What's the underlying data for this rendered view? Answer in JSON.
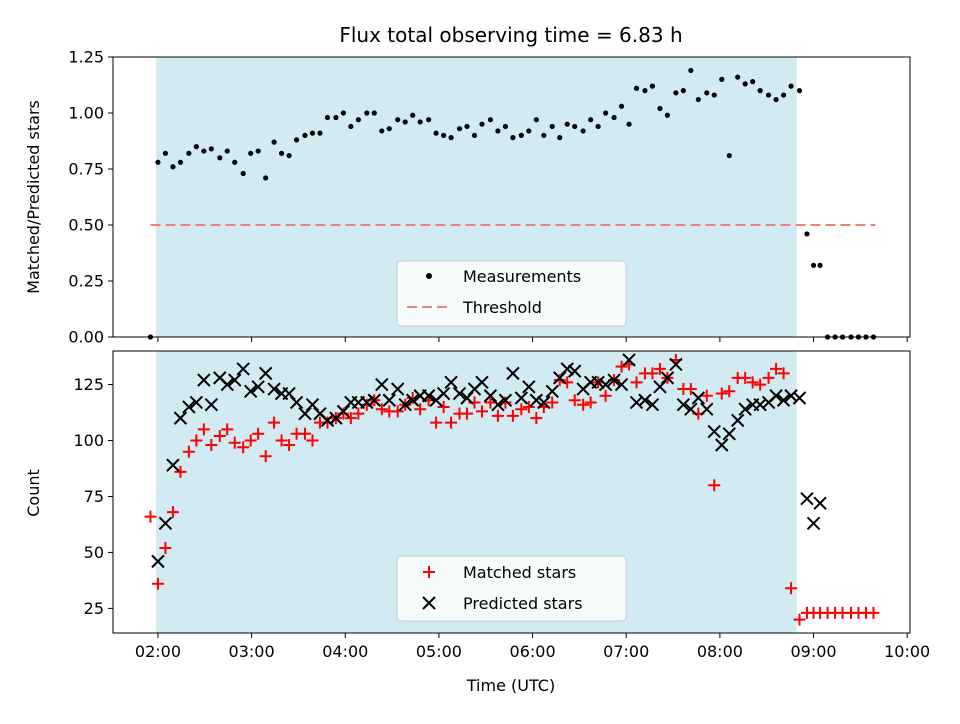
{
  "title": "Flux total observing time = 6.83 h",
  "chart_data": [
    {
      "type": "scatter",
      "ylabel": "Matched/Predicted stars",
      "xlim": [
        1.52,
        10.03
      ],
      "ylim": [
        0,
        1.25
      ],
      "yticks": [
        0.0,
        0.25,
        0.5,
        0.75,
        1.0,
        1.25
      ],
      "ytick_labels": [
        "0.00",
        "0.25",
        "0.50",
        "0.75",
        "1.00",
        "1.25"
      ],
      "shaded_span_hours": [
        1.98,
        8.82
      ],
      "shade_color": "#add8e6",
      "threshold": {
        "label": "Threshold",
        "y": 0.5,
        "x_from": 1.92,
        "x_to": 9.66,
        "color": "#f08080",
        "style": "dashed"
      },
      "legend": {
        "position": "lower center",
        "entries": [
          "Measurements",
          "Threshold"
        ]
      },
      "series": [
        {
          "name": "Measurements",
          "marker": "dot",
          "color": "#000000",
          "x": [
            1.92,
            2.0,
            2.08,
            2.16,
            2.24,
            2.33,
            2.41,
            2.49,
            2.57,
            2.66,
            2.74,
            2.82,
            2.91,
            2.99,
            3.07,
            3.15,
            3.24,
            3.32,
            3.4,
            3.48,
            3.57,
            3.65,
            3.73,
            3.81,
            3.9,
            3.98,
            4.06,
            4.14,
            4.23,
            4.31,
            4.39,
            4.47,
            4.56,
            4.64,
            4.72,
            4.8,
            4.89,
            4.97,
            5.05,
            5.13,
            5.22,
            5.3,
            5.38,
            5.46,
            5.55,
            5.63,
            5.71,
            5.79,
            5.88,
            5.96,
            6.04,
            6.12,
            6.21,
            6.29,
            6.37,
            6.45,
            6.54,
            6.62,
            6.7,
            6.78,
            6.87,
            6.95,
            7.03,
            7.11,
            7.2,
            7.28,
            7.36,
            7.44,
            7.53,
            7.61,
            7.69,
            7.77,
            7.86,
            7.94,
            8.02,
            8.1,
            8.19,
            8.27,
            8.35,
            8.43,
            8.52,
            8.6,
            8.68,
            8.76,
            8.85,
            8.93,
            9.0,
            9.07,
            9.15,
            9.23,
            9.31,
            9.4,
            9.48,
            9.56,
            9.64
          ],
          "y": [
            0.0,
            0.78,
            0.82,
            0.76,
            0.78,
            0.82,
            0.85,
            0.83,
            0.84,
            0.8,
            0.83,
            0.78,
            0.73,
            0.82,
            0.83,
            0.71,
            0.87,
            0.82,
            0.81,
            0.88,
            0.9,
            0.91,
            0.91,
            0.98,
            0.98,
            1.0,
            0.94,
            0.97,
            1.0,
            1.0,
            0.92,
            0.93,
            0.97,
            0.96,
            0.99,
            0.96,
            0.97,
            0.91,
            0.9,
            0.89,
            0.93,
            0.94,
            0.9,
            0.95,
            0.97,
            0.92,
            0.94,
            0.89,
            0.9,
            0.92,
            0.97,
            0.9,
            0.94,
            0.89,
            0.95,
            0.94,
            0.92,
            0.97,
            0.94,
            1.0,
            0.98,
            1.03,
            0.95,
            1.11,
            1.1,
            1.12,
            1.02,
            0.99,
            1.09,
            1.1,
            1.19,
            1.06,
            1.09,
            1.08,
            1.15,
            0.81,
            1.16,
            1.13,
            1.14,
            1.1,
            1.08,
            1.06,
            1.08,
            1.12,
            1.1,
            0.46,
            0.32,
            0.32,
            0.0,
            0.0,
            0.0,
            0.0,
            0.0,
            0.0,
            0.0
          ]
        }
      ]
    },
    {
      "type": "scatter",
      "xlabel": "Time (UTC)",
      "ylabel": "Count",
      "xlim": [
        1.52,
        10.03
      ],
      "ylim": [
        14,
        140
      ],
      "xticks": [
        2,
        3,
        4,
        5,
        6,
        7,
        8,
        9,
        10
      ],
      "xtick_labels": [
        "02:00",
        "03:00",
        "04:00",
        "05:00",
        "06:00",
        "07:00",
        "08:00",
        "09:00",
        "10:00"
      ],
      "yticks": [
        25,
        50,
        75,
        100,
        125
      ],
      "ytick_labels": [
        "25",
        "50",
        "75",
        "100",
        "125"
      ],
      "shaded_span_hours": [
        1.98,
        8.82
      ],
      "shade_color": "#add8e6",
      "legend": {
        "position": "lower center",
        "entries": [
          "Matched stars",
          "Predicted stars"
        ]
      },
      "series": [
        {
          "name": "Matched stars",
          "marker": "plus",
          "color": "#ff0000",
          "x": [
            1.92,
            2.0,
            2.08,
            2.16,
            2.24,
            2.33,
            2.41,
            2.49,
            2.57,
            2.66,
            2.74,
            2.82,
            2.91,
            2.99,
            3.07,
            3.15,
            3.24,
            3.32,
            3.4,
            3.48,
            3.57,
            3.65,
            3.73,
            3.81,
            3.9,
            3.98,
            4.06,
            4.14,
            4.23,
            4.31,
            4.39,
            4.47,
            4.56,
            4.64,
            4.72,
            4.8,
            4.89,
            4.97,
            5.05,
            5.13,
            5.22,
            5.3,
            5.38,
            5.46,
            5.55,
            5.63,
            5.71,
            5.79,
            5.88,
            5.96,
            6.04,
            6.12,
            6.21,
            6.29,
            6.37,
            6.45,
            6.54,
            6.62,
            6.7,
            6.78,
            6.87,
            6.95,
            7.03,
            7.11,
            7.2,
            7.28,
            7.36,
            7.44,
            7.53,
            7.61,
            7.69,
            7.77,
            7.86,
            7.94,
            8.02,
            8.1,
            8.19,
            8.27,
            8.35,
            8.43,
            8.52,
            8.6,
            8.68,
            8.76,
            8.85,
            8.93,
            9.0,
            9.07,
            9.15,
            9.23,
            9.31,
            9.4,
            9.48,
            9.56,
            9.64
          ],
          "y": [
            66,
            36,
            52,
            68,
            86,
            95,
            100,
            105,
            98,
            102,
            105,
            99,
            97,
            100,
            103,
            93,
            108,
            100,
            98,
            103,
            103,
            100,
            108,
            108,
            110,
            112,
            110,
            112,
            116,
            118,
            114,
            113,
            113,
            116,
            119,
            114,
            118,
            108,
            115,
            108,
            112,
            112,
            117,
            113,
            117,
            111,
            117,
            111,
            114,
            115,
            110,
            115,
            117,
            127,
            126,
            118,
            116,
            117,
            126,
            120,
            127,
            133,
            134,
            126,
            130,
            130,
            132,
            128,
            136,
            123,
            123,
            112,
            120,
            80,
            121,
            122,
            128,
            128,
            126,
            125,
            128,
            132,
            130,
            34,
            20,
            23,
            23,
            23,
            23,
            23,
            23,
            23,
            23,
            23,
            23
          ]
        },
        {
          "name": "Predicted stars",
          "marker": "x",
          "color": "#000000",
          "x": [
            2.0,
            2.08,
            2.16,
            2.24,
            2.33,
            2.41,
            2.49,
            2.57,
            2.66,
            2.74,
            2.82,
            2.91,
            2.99,
            3.07,
            3.15,
            3.24,
            3.32,
            3.4,
            3.48,
            3.57,
            3.65,
            3.73,
            3.81,
            3.9,
            3.98,
            4.06,
            4.14,
            4.23,
            4.31,
            4.39,
            4.47,
            4.56,
            4.64,
            4.72,
            4.8,
            4.89,
            4.97,
            5.05,
            5.13,
            5.22,
            5.3,
            5.38,
            5.46,
            5.55,
            5.63,
            5.71,
            5.79,
            5.88,
            5.96,
            6.04,
            6.12,
            6.21,
            6.29,
            6.37,
            6.45,
            6.54,
            6.62,
            6.7,
            6.78,
            6.87,
            6.95,
            7.03,
            7.11,
            7.2,
            7.28,
            7.36,
            7.44,
            7.53,
            7.61,
            7.69,
            7.77,
            7.86,
            7.94,
            8.02,
            8.1,
            8.19,
            8.27,
            8.35,
            8.43,
            8.52,
            8.6,
            8.68,
            8.76,
            8.85,
            8.93,
            9.0,
            9.07
          ],
          "y": [
            46,
            63,
            89,
            110,
            115,
            117,
            127,
            116,
            128,
            125,
            127,
            132,
            122,
            124,
            130,
            123,
            121,
            121,
            117,
            112,
            116,
            112,
            109,
            110,
            113,
            117,
            117,
            117,
            118,
            125,
            118,
            123,
            116,
            118,
            120,
            120,
            118,
            121,
            126,
            121,
            119,
            123,
            126,
            120,
            116,
            118,
            130,
            119,
            124,
            118,
            117,
            122,
            128,
            132,
            131,
            123,
            126,
            126,
            125,
            127,
            125,
            136,
            117,
            118,
            116,
            124,
            128,
            134,
            116,
            114,
            119,
            114,
            104,
            98,
            103,
            109,
            114,
            116,
            116,
            117,
            120,
            118,
            120,
            119,
            74,
            63,
            72
          ]
        }
      ]
    }
  ]
}
